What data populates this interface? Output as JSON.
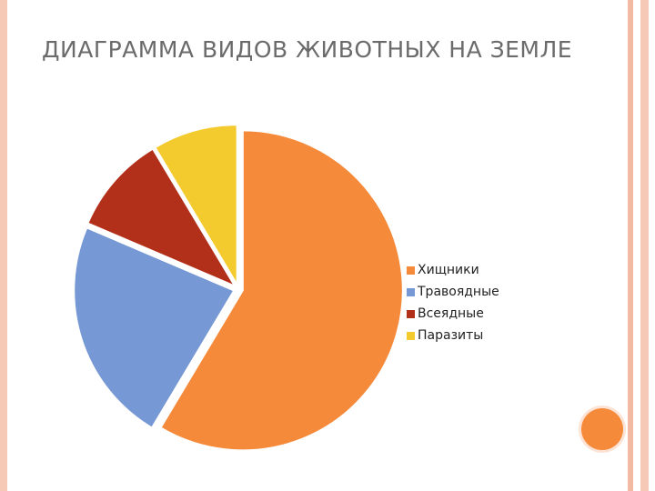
{
  "chart_data": {
    "type": "pie",
    "title": "ДИАГРАММА ВИДОВ ЖИВОТНЫХ НА ЗЕМЛЕ",
    "categories": [
      "Хищники",
      "Травоядные",
      "Всеядные",
      "Паразиты"
    ],
    "values": [
      8.2,
      3.2,
      1.4,
      1.2
    ],
    "colors": [
      "#f58a3a",
      "#7698d4",
      "#b23019",
      "#f4cb2f"
    ],
    "legend": "right"
  }
}
